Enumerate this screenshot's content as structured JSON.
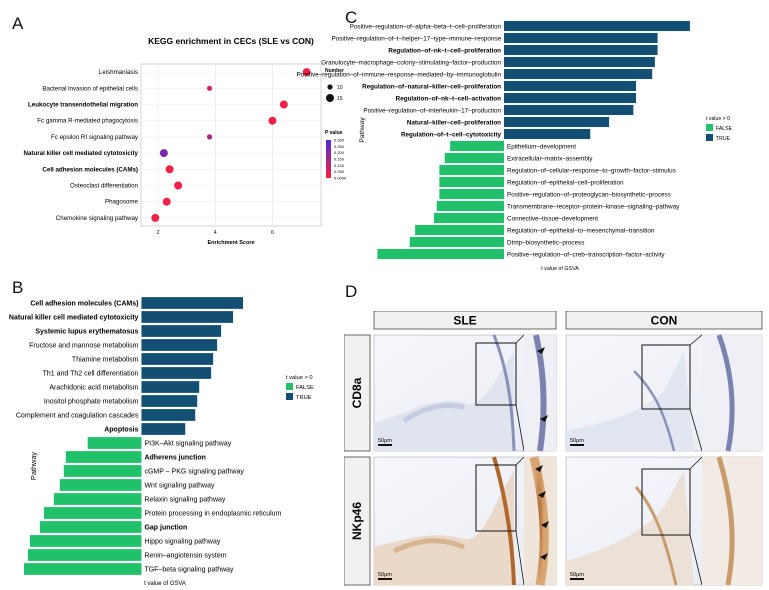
{
  "panel_letters": [
    "A",
    "B",
    "C",
    "D"
  ],
  "chart_data": [
    {
      "panel": "A",
      "type": "scatter",
      "title": "KEGG enrichment in CECs (SLE vs CON)",
      "xlabel": "Enrichment Score",
      "ylabel": "",
      "xlim": [
        1.4,
        7.7
      ],
      "xticks": [
        2,
        4,
        6
      ],
      "categories": [
        "Leishmaniasis",
        "Bacterial invasion of epithelial cells",
        "Leukocyte transendothelial migration",
        "Fc gamma R-mediated phagocytosis",
        "Fc epsilon RI signaling pathway",
        "Natural killer cell mediated cytotoxicity",
        "Cell adhesion molecules (CAMs)",
        "Osteoclast differentiation",
        "Phagosome",
        "Chemokine signaling pathway"
      ],
      "bold": [
        false,
        false,
        true,
        false,
        false,
        true,
        true,
        false,
        false,
        false
      ],
      "x": [
        7.2,
        3.8,
        6.4,
        6.0,
        3.8,
        2.2,
        2.4,
        2.7,
        2.3,
        1.9
      ],
      "number": [
        15,
        10,
        15,
        15,
        10,
        15,
        15,
        15,
        15,
        15
      ],
      "pvalue": [
        0.02,
        0.06,
        0.02,
        0.02,
        0.15,
        0.22,
        0.02,
        0.02,
        0.02,
        0.02
      ],
      "legend_number_title": "Number",
      "legend_number_entries": [
        "10",
        "15"
      ],
      "legend_p_title": "P value",
      "legend_p_ticks": [
        "0.300",
        "0.250",
        "0.200",
        "0.150",
        "0.100",
        "0.050",
        "0.0000"
      ],
      "colors": {
        "low_p": "#ff1f3d",
        "high_p": "#4a2bd6"
      }
    },
    {
      "panel": "B",
      "type": "bar",
      "orientation": "horizontal",
      "xlabel": "t value of GSVA",
      "ylabel": "Pathway",
      "legend_title": "t value > 0",
      "legend_entries": [
        "FALSE",
        "TRUE"
      ],
      "colors": {
        "TRUE": "#134f73",
        "FALSE": "#20c16a"
      },
      "xlim": [
        -6.2,
        5.2
      ],
      "categories": [
        "Cell adhesion molecules (CAMs)",
        "Natural killer cell mediated cytotoxicity",
        "Systemic lupus erythematosus",
        "Fructose and mannose metabolism",
        "Thiamine metabolism",
        "Th1 and Th2 cell differentiation",
        "Arachidonic acid metabolism",
        "Inositol phosphate metabolism",
        "Complement and coagulation cascades",
        "Apoptosis",
        "PI3K–Akt signaling pathway",
        "Adherens junction",
        "cGMP – PKG signaling pathway",
        "Wnt signaling pathway",
        "Relaxin signaling pathway",
        "Protein processing in endoplasmic reticulum",
        "Gap junction",
        "Hippo signaling pathway",
        "Renin–angiotensin system",
        "TGF–beta signaling pathway"
      ],
      "bold": [
        true,
        true,
        true,
        false,
        false,
        false,
        false,
        false,
        false,
        true,
        false,
        true,
        false,
        false,
        false,
        false,
        true,
        false,
        false,
        false
      ],
      "values": [
        5.1,
        4.6,
        4.0,
        3.8,
        3.6,
        3.5,
        2.9,
        2.8,
        2.7,
        2.2,
        -2.7,
        -3.8,
        -3.9,
        -4.1,
        -4.4,
        -4.9,
        -5.1,
        -5.6,
        -5.7,
        -5.9
      ]
    },
    {
      "panel": "C",
      "type": "bar",
      "orientation": "horizontal",
      "xlabel": "t value of GSVA",
      "ylabel": "Pathway",
      "legend_title": "t value > 0",
      "legend_entries": [
        "FALSE",
        "TRUE"
      ],
      "colors": {
        "TRUE": "#134f73",
        "FALSE": "#20c16a"
      },
      "xlim": [
        -4.9,
        7.2
      ],
      "categories": [
        "Positive–regulation–of–alpha–beta–t–cell–proliferation",
        "Positive–regulation–of–t–helper–17–type–immune–response",
        "Regulation–of–nk–t–cell–proliferation",
        "Granulocyte–macrophage–colony–stimulating–factor–production",
        "Positive–regulation–of–immune–response–mediated–by–immunoglobulin",
        "Regulation–of–natural–killer–cell–proliferation",
        "Regulation–of–nk–t–cell–activation",
        "Positive–regulation–of–interleukin–17–production",
        "Natural–killer–cell–proliferation",
        "Regulation–of–t–cell–cytotoxicity",
        "Epithelium–development",
        "Extracellular–matrix–assembly",
        "Regulation–of–cellular–response–to–growth–factor–stimulus",
        "Regulation–of–epithelial–cell–proliferation",
        "Positive–regulation–of–proteoglycan–biosynthetic–process",
        "Transmembrane–receptor–protein–kinase–signaling–pathway",
        "Connective–tissue–development",
        "Regulation–of–epithelial–to–mesenchymal–transition",
        "Dtmp–biosynthetic–process",
        "Positive–regulation–of–creb–transcription–factor–activity"
      ],
      "bold": [
        false,
        false,
        true,
        false,
        false,
        true,
        true,
        false,
        true,
        true,
        false,
        false,
        false,
        false,
        false,
        false,
        false,
        false,
        false,
        false
      ],
      "values": [
        6.9,
        5.7,
        5.7,
        5.6,
        5.5,
        4.9,
        4.9,
        4.8,
        3.9,
        3.2,
        -2.0,
        -2.2,
        -2.4,
        -2.4,
        -2.4,
        -2.5,
        -2.6,
        -3.3,
        -3.5,
        -4.7
      ]
    }
  ],
  "panel_d": {
    "column_labels": [
      "SLE",
      "CON"
    ],
    "row_labels": [
      "CD8a",
      "NKp46"
    ],
    "scale_bar_label": "50μm"
  }
}
